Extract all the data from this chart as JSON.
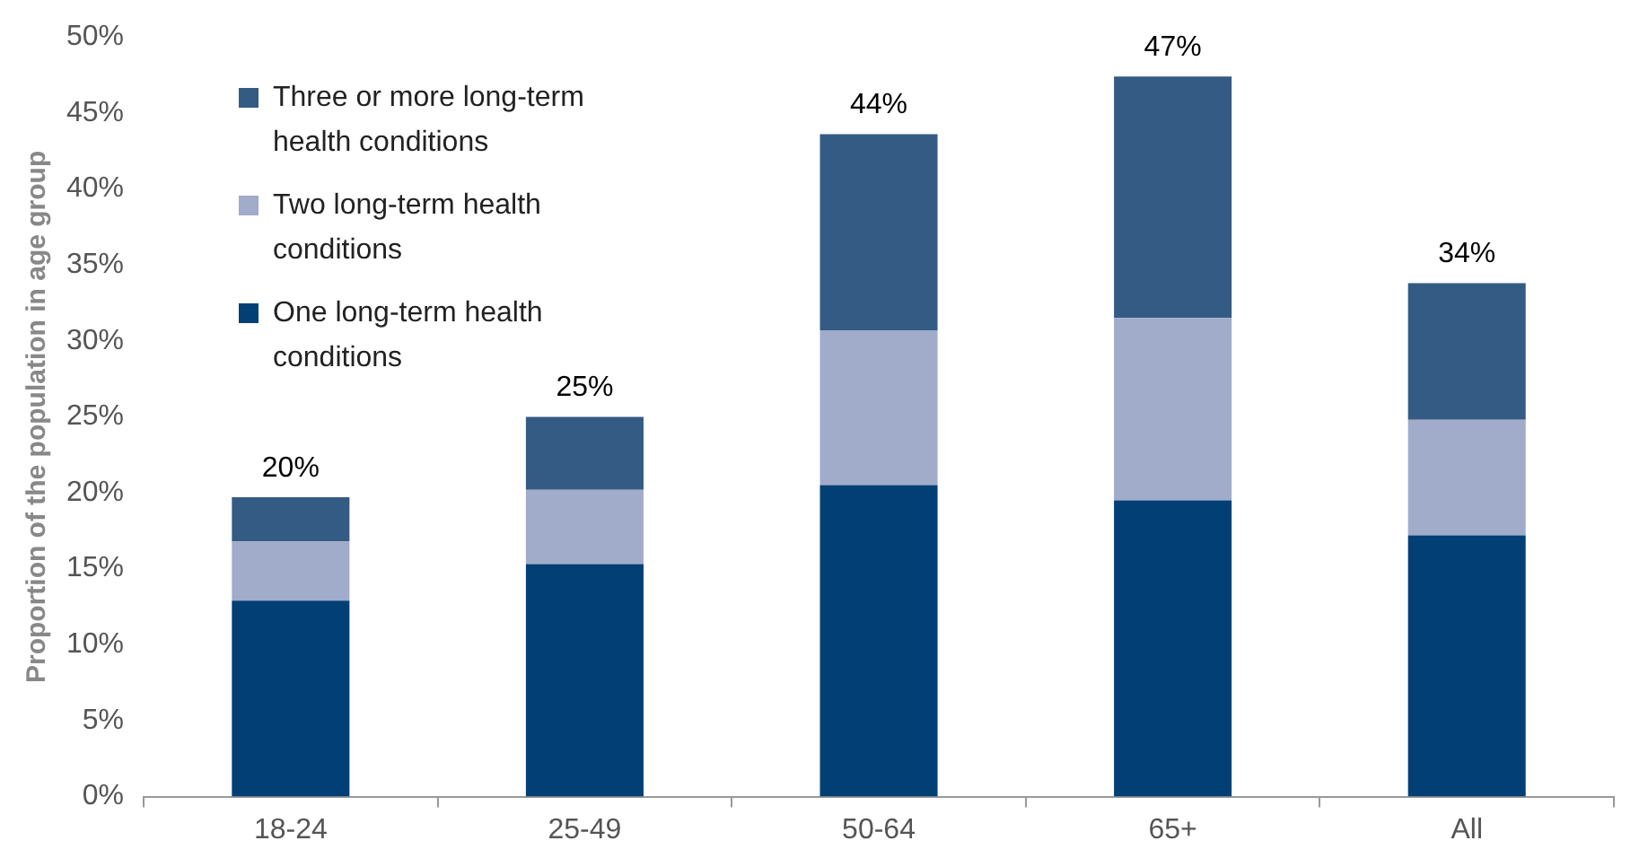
{
  "chart_data": {
    "type": "bar",
    "stacked": true,
    "ylabel": "Proportion of the population in age group",
    "categories": [
      "18-24",
      "25-49",
      "50-64",
      "65+",
      "All"
    ],
    "series": [
      {
        "name": "One long-term health conditions",
        "color": "#013f75",
        "values": [
          12.9,
          15.3,
          20.5,
          19.5,
          17.2
        ]
      },
      {
        "name": "Two long-term health conditions",
        "color": "#a1abca",
        "values": [
          3.9,
          4.9,
          10.2,
          12.0,
          7.6
        ]
      },
      {
        "name": "Three or more long-term health conditions",
        "color": "#345b84",
        "values": [
          2.9,
          4.8,
          12.9,
          15.9,
          9.0
        ]
      }
    ],
    "totals": [
      "20%",
      "25%",
      "44%",
      "47%",
      "34%"
    ],
    "ylim": [
      0,
      50
    ],
    "yticks": [
      {
        "value": 0,
        "label": "0%"
      },
      {
        "value": 5,
        "label": "5%"
      },
      {
        "value": 10,
        "label": "10%"
      },
      {
        "value": 15,
        "label": "15%"
      },
      {
        "value": 20,
        "label": "20%"
      },
      {
        "value": 25,
        "label": "25%"
      },
      {
        "value": 30,
        "label": "30%"
      },
      {
        "value": 35,
        "label": "35%"
      },
      {
        "value": 40,
        "label": "40%"
      },
      {
        "value": 45,
        "label": "45%"
      },
      {
        "value": 50,
        "label": "50%"
      }
    ],
    "grid": false,
    "legend": "top left"
  }
}
